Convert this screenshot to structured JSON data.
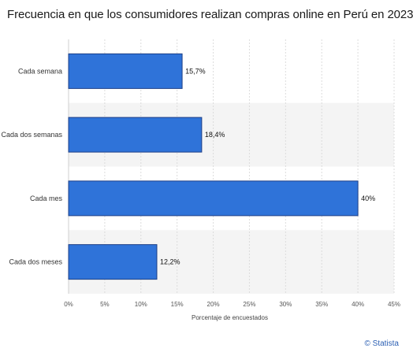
{
  "chart_data": {
    "type": "bar",
    "orientation": "horizontal",
    "title": "Frecuencia en que los consumidores realizan compras online en Perú en 2023",
    "xlabel": "Porcentaje de encuestados",
    "ylabel": "",
    "categories": [
      "Cada semana",
      "Cada dos semanas",
      "Cada mes",
      "Cada dos meses"
    ],
    "values": [
      15.7,
      18.4,
      40,
      12.2
    ],
    "value_labels": [
      "15,7%",
      "18,4%",
      "40%",
      "12,2%"
    ],
    "xlim": [
      0,
      45
    ],
    "x_ticks": [
      0,
      5,
      10,
      15,
      20,
      25,
      30,
      35,
      40,
      45
    ],
    "x_tick_labels": [
      "0%",
      "5%",
      "10%",
      "15%",
      "20%",
      "25%",
      "30%",
      "35%",
      "40%",
      "45%"
    ],
    "grid": true,
    "legend": "none",
    "bar_color": "#2f73d9",
    "bar_border_color": "#1d3f86",
    "band_color": "#f4f4f4"
  },
  "source_credit": "© Statista"
}
